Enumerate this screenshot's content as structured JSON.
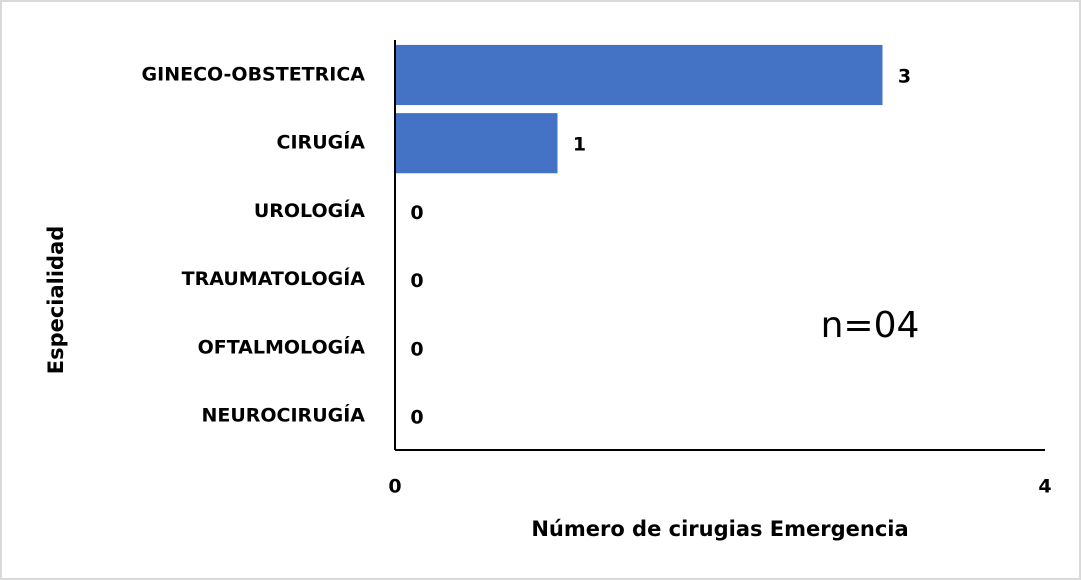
{
  "chart_data": {
    "type": "bar",
    "orientation": "horizontal",
    "categories": [
      "GINECO-OBSTETRICA",
      "CIRUGÍA",
      "UROLOGÍA",
      "TRAUMATOLOGÍA",
      "OFTALMOLOGÍA",
      "NEUROCIRUGÍA"
    ],
    "values": [
      3,
      1,
      0,
      0,
      0,
      0
    ],
    "color": "#4472c4",
    "xlim": [
      0,
      4
    ],
    "xticks": [
      0,
      4
    ],
    "x_label": "Número de cirugias Emergencia",
    "y_label": "Especialidad",
    "annotation": "n=04"
  }
}
